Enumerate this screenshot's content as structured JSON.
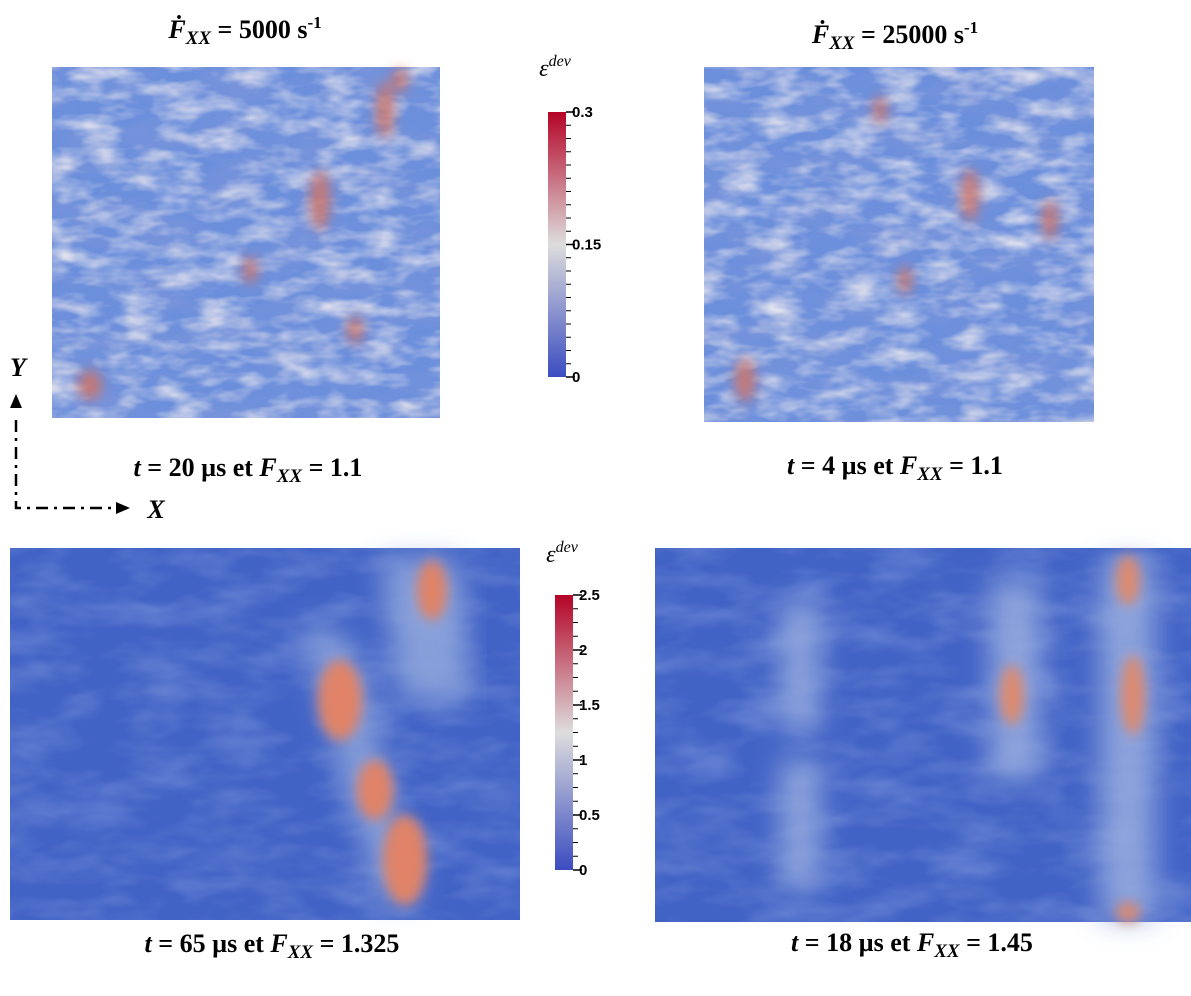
{
  "headers": [
    {
      "symbol": "Ḟ",
      "sub": "XX",
      "rest": " = 5000 s",
      "sup": "-1"
    },
    {
      "symbol": "Ḟ",
      "sub": "XX",
      "rest": " = 25000 s",
      "sup": "-1"
    }
  ],
  "captions": [
    {
      "t": "t",
      "mid": " = 20 µs et ",
      "F": "F",
      "sub": "XX",
      "rest": " = 1.1"
    },
    {
      "t": "t",
      "mid": " = 4 µs et ",
      "F": "F",
      "sub": "XX",
      "rest": " = 1.1"
    },
    {
      "t": "t",
      "mid": " = 65 µs et ",
      "F": "F",
      "sub": "XX",
      "rest": " = 1.325"
    },
    {
      "t": "t",
      "mid": " = 18 µs et ",
      "F": "F",
      "sub": "XX",
      "rest": " = 1.45"
    }
  ],
  "colorbars": [
    {
      "base": "ε",
      "sup": "dev",
      "ticks": [
        0,
        0.15,
        0.3
      ]
    },
    {
      "base": "ε",
      "sup": "dev",
      "ticks": [
        0,
        0.5,
        1,
        1.5,
        2,
        2.5
      ]
    }
  ],
  "axes": {
    "y": "Y",
    "x": "X"
  }
}
